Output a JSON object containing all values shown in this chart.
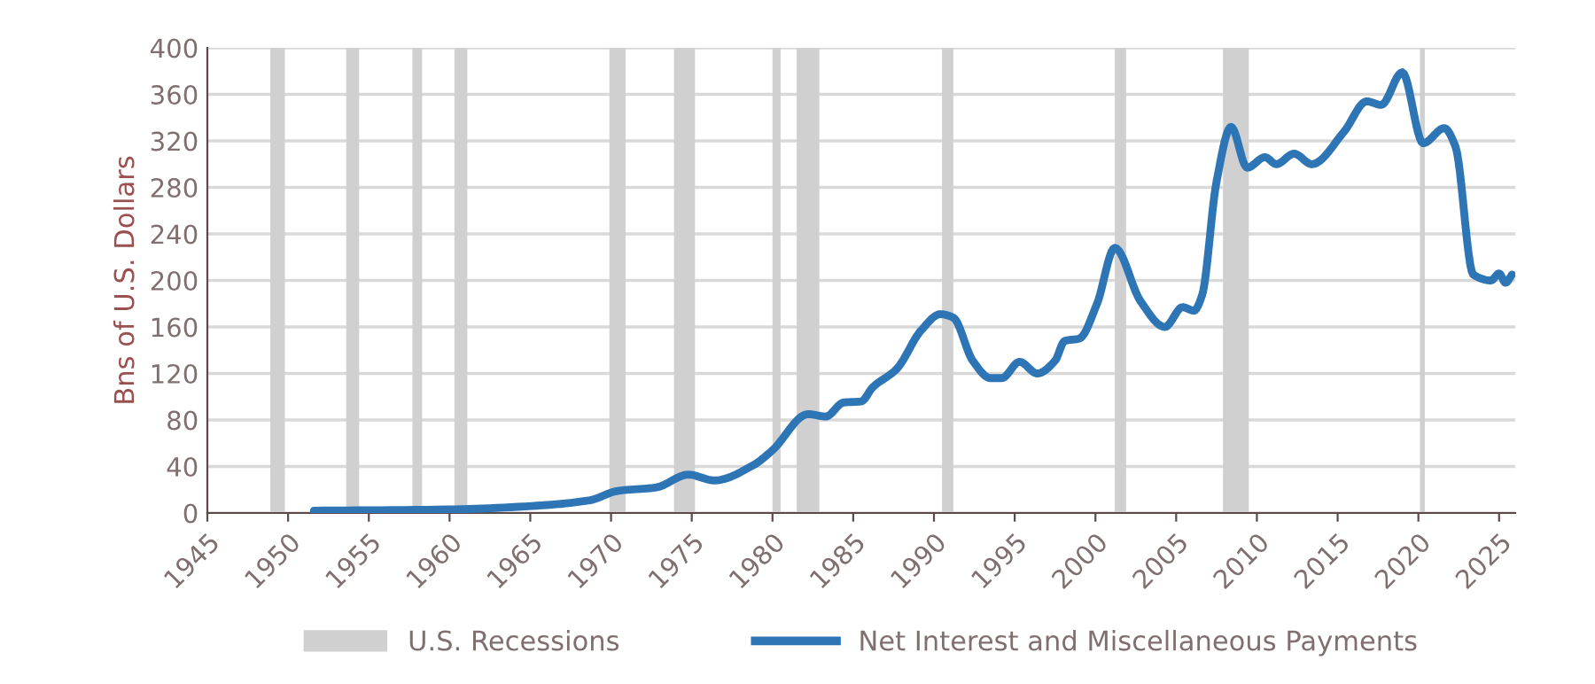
{
  "chart_data": {
    "type": "line",
    "ylabel": "Bns of U.S. Dollars",
    "xlim": [
      1945,
      2026
    ],
    "xticks": [
      1945,
      1950,
      1955,
      1960,
      1965,
      1970,
      1975,
      1980,
      1985,
      1990,
      1995,
      2000,
      2005,
      2010,
      2015,
      2020,
      2025
    ],
    "ylim": [
      0,
      400
    ],
    "yticks": [
      0,
      40,
      80,
      120,
      160,
      200,
      240,
      280,
      320,
      360,
      400
    ],
    "grid": "y",
    "legend": "bottom",
    "series": [
      {
        "name": "Net Interest and Miscellaneous Payments",
        "color": "#2e75b6",
        "x": [
          1951.6,
          1959.9,
          1965.1,
          1968.7,
          1970.4,
          1972.8,
          1974.8,
          1976.4,
          1978.8,
          1980.0,
          1982.2,
          1983.3,
          1984.4,
          1985.5,
          1986.2,
          1987.7,
          1989.2,
          1990.4,
          1991.2,
          1992.4,
          1993.5,
          1994.2,
          1995.3,
          1996.4,
          1997.5,
          1998.1,
          1999.0,
          2000.1,
          2001.2,
          2002.8,
          2004.3,
          2005.4,
          2006.1,
          2006.6,
          2007.5,
          2008.4,
          2009.4,
          2010.5,
          2011.2,
          2012.3,
          2013.4,
          2015.4,
          2016.8,
          2017.7,
          2019.0,
          2020.3,
          2021.6,
          2022.3,
          2023.4,
          2024.5,
          2025.0,
          2025.4,
          2025.8
        ],
        "values": [
          2,
          3,
          6,
          11,
          19,
          22,
          33,
          28,
          41,
          54,
          85,
          83,
          95,
          96,
          108,
          124,
          157,
          171,
          168,
          131,
          116,
          116,
          130,
          120,
          131,
          148,
          150,
          180,
          228,
          182,
          160,
          177,
          174,
          187,
          285,
          332,
          297,
          306,
          300,
          309,
          300,
          328,
          354,
          351,
          379,
          318,
          331,
          315,
          205,
          200,
          206,
          198,
          205
        ]
      }
    ],
    "bands": [
      {
        "axis": "x",
        "from": 1948.9,
        "to": 1949.8,
        "label": "U.S. Recessions",
        "color": "#d0d0d0"
      },
      {
        "axis": "x",
        "from": 1953.6,
        "to": 1954.4,
        "color": "#d0d0d0"
      },
      {
        "axis": "x",
        "from": 1957.7,
        "to": 1958.3,
        "color": "#d0d0d0"
      },
      {
        "axis": "x",
        "from": 1960.3,
        "to": 1961.1,
        "color": "#d0d0d0"
      },
      {
        "axis": "x",
        "from": 1969.9,
        "to": 1970.9,
        "color": "#d0d0d0"
      },
      {
        "axis": "x",
        "from": 1973.9,
        "to": 1975.2,
        "color": "#d0d0d0"
      },
      {
        "axis": "x",
        "from": 1980.0,
        "to": 1980.5,
        "color": "#d0d0d0"
      },
      {
        "axis": "x",
        "from": 1981.5,
        "to": 1982.9,
        "color": "#d0d0d0"
      },
      {
        "axis": "x",
        "from": 1990.5,
        "to": 1991.2,
        "color": "#d0d0d0"
      },
      {
        "axis": "x",
        "from": 2001.2,
        "to": 2001.9,
        "color": "#d0d0d0"
      },
      {
        "axis": "x",
        "from": 2007.9,
        "to": 2009.5,
        "color": "#d0d0d0"
      },
      {
        "axis": "x",
        "from": 2020.1,
        "to": 2020.4,
        "color": "#d0d0d0"
      }
    ]
  }
}
